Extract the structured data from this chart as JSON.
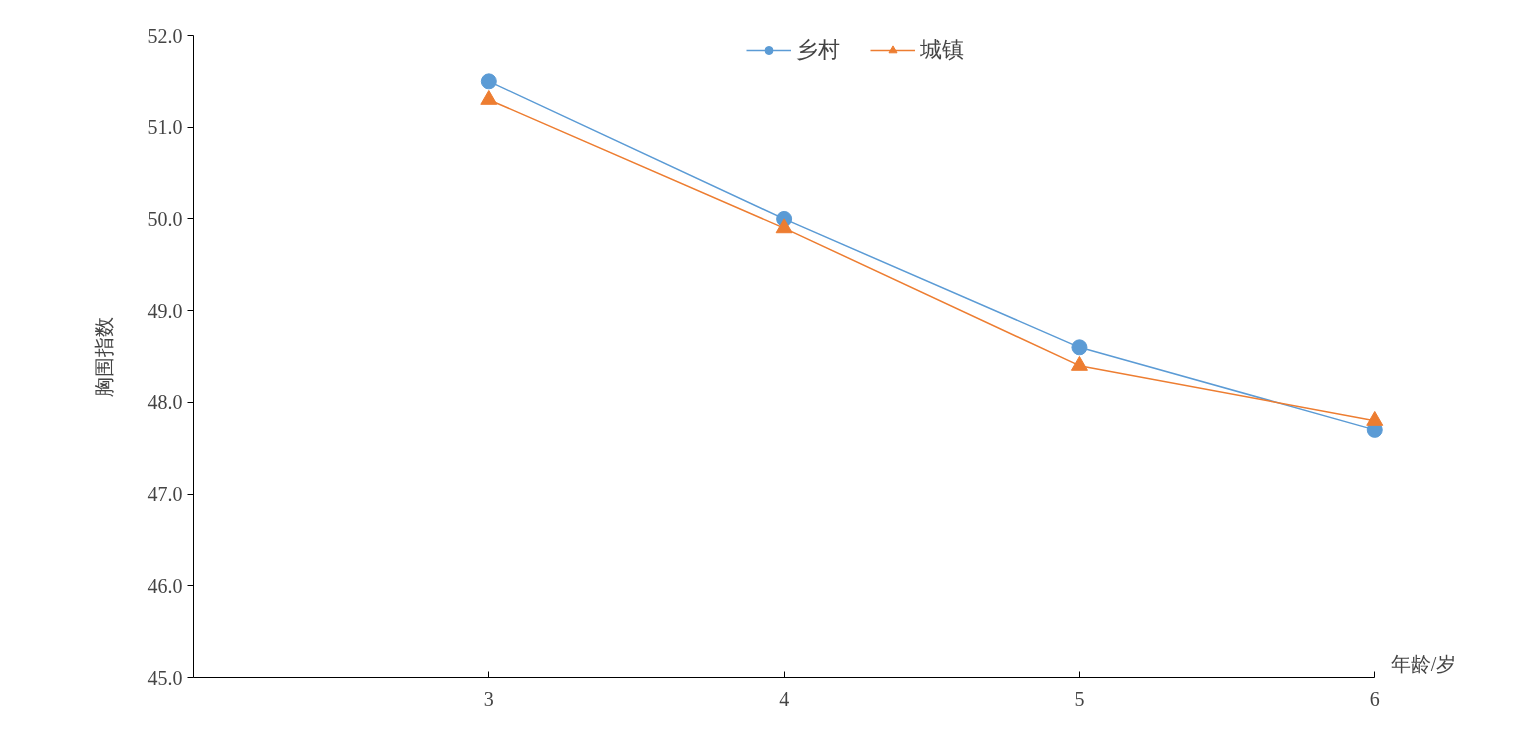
{
  "chart_data": {
    "type": "line",
    "xlabel": "年龄/岁",
    "ylabel": "胸围指数",
    "x": [
      3,
      4,
      5,
      6
    ],
    "xlim": [
      2,
      6
    ],
    "xticks": [
      3,
      4,
      5,
      6
    ],
    "ylim": [
      45,
      52
    ],
    "yticks": [
      {
        "value": 45,
        "label": "45.0"
      },
      {
        "value": 46,
        "label": "46.0"
      },
      {
        "value": 47,
        "label": "47.0"
      },
      {
        "value": 48,
        "label": "48.0"
      },
      {
        "value": 49,
        "label": "49.0"
      },
      {
        "value": 50,
        "label": "50.0"
      },
      {
        "value": 51,
        "label": "51.0"
      },
      {
        "value": 52,
        "label": "52.0"
      }
    ],
    "grid": false,
    "legend": "top",
    "line_style": "solid",
    "series": [
      {
        "name": "乡村",
        "color": "#5b9bd5",
        "marker": "circle",
        "values": [
          51.5,
          50.0,
          48.6,
          47.7
        ]
      },
      {
        "name": "城镇",
        "color": "#ed7d31",
        "marker": "triangle",
        "values": [
          51.3,
          49.9,
          48.4,
          47.8
        ]
      }
    ]
  }
}
